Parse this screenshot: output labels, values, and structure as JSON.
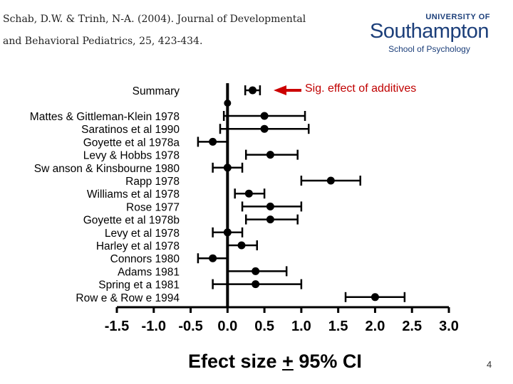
{
  "citation": {
    "line1": "Schab, D.W. & Trinh, N-A. (2004). Journal of  Developmental",
    "line2": "and Behavioral Pediatrics, 25, 423-434."
  },
  "logo": {
    "top": "UNIVERSITY OF",
    "main": "Southampton",
    "sub": "School of Psychology",
    "color": "#1c3f7a"
  },
  "annotation": {
    "text": "Sig. effect of additives",
    "color": "#c00000"
  },
  "xlabel": {
    "main": "Efect size ",
    "pm": "+",
    "rest": " 95% CI"
  },
  "page_number": "4",
  "chart_data": {
    "type": "forest",
    "xlim": [
      -1.5,
      3.0
    ],
    "xticks": [
      -1.5,
      -1.0,
      -0.5,
      0.0,
      0.5,
      1.0,
      1.5,
      2.0,
      2.5,
      3.0
    ],
    "xtick_labels": [
      "-1.5",
      "-1.0",
      "-0.5",
      "0.0",
      "0.5",
      "1.0",
      "1.5",
      "2.0",
      "2.5",
      "3.0"
    ],
    "reference_line": 0,
    "summary": {
      "label": "Summary",
      "estimate": 0.34,
      "lower": 0.24,
      "upper": 0.44
    },
    "studies": [
      {
        "label": "Mattes & Gittleman-Klein 1978",
        "estimate": 0.5,
        "lower": -0.05,
        "upper": 1.05
      },
      {
        "label": "Saratinos et al 1990",
        "estimate": 0.5,
        "lower": -0.1,
        "upper": 1.1
      },
      {
        "label": "Goyette et al 1978a",
        "estimate": -0.2,
        "lower": -0.4,
        "upper": 0.0
      },
      {
        "label": "Levy & Hobbs 1978",
        "estimate": 0.58,
        "lower": 0.25,
        "upper": 0.95
      },
      {
        "label": "Sw anson & Kinsbourne 1980",
        "estimate": 0.0,
        "lower": -0.2,
        "upper": 0.2
      },
      {
        "label": "Rapp 1978",
        "estimate": 1.4,
        "lower": 1.0,
        "upper": 1.8
      },
      {
        "label": "Williams et al 1978",
        "estimate": 0.29,
        "lower": 0.1,
        "upper": 0.5
      },
      {
        "label": "Rose 1977",
        "estimate": 0.58,
        "lower": 0.2,
        "upper": 1.0
      },
      {
        "label": "Goyette et al 1978b",
        "estimate": 0.58,
        "lower": 0.25,
        "upper": 0.95
      },
      {
        "label": "Levy et al 1978",
        "estimate": 0.0,
        "lower": -0.2,
        "upper": 0.2
      },
      {
        "label": "Harley et al 1978",
        "estimate": 0.19,
        "lower": 0.0,
        "upper": 0.4
      },
      {
        "label": "Connors 1980",
        "estimate": -0.2,
        "lower": -0.4,
        "upper": 0.0
      },
      {
        "label": "Adams 1981",
        "estimate": 0.38,
        "lower": 0.0,
        "upper": 0.8
      },
      {
        "label": "Spring et a 1981",
        "estimate": 0.38,
        "lower": -0.2,
        "upper": 1.0
      },
      {
        "label": "Row e & Row e 1994",
        "estimate": 2.0,
        "lower": 1.6,
        "upper": 2.4
      }
    ]
  }
}
